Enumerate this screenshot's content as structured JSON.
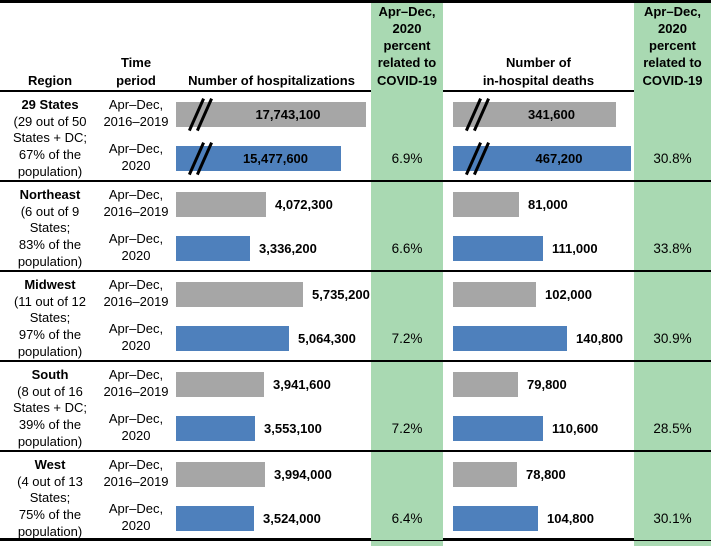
{
  "colors": {
    "bar_2016_2019_gray": "#a6a6a6",
    "bar_2020_blue": "#4e80bc",
    "covid_column_green": "#a9d9b2",
    "rule_black": "#000000"
  },
  "header": {
    "region": "Region",
    "time_period": "Time\nperiod",
    "hospitalizations": "Number of hospitalizations",
    "covid_pct_hosp": "Apr–Dec,\n2020\npercent\nrelated to\nCOVID-19",
    "deaths": "Number of\nin-hospital deaths",
    "covid_pct_deaths": "Apr–Dec,\n2020\npercent\nrelated to\nCOVID-19"
  },
  "rows": [
    {
      "region_name": "29 States",
      "region_sub": "(29 out of 50\nStates + DC;\n67% of the\npopulation)",
      "period_baseline": "Apr–Dec,\n2016–2019",
      "period_2020": "Apr–Dec,\n2020",
      "hosp_baseline_label": "17,743,100",
      "hosp_2020_label": "15,477,600",
      "hosp_covid_pct": "6.9%",
      "deaths_baseline_label": "341,600",
      "deaths_2020_label": "467,200",
      "deaths_covid_pct": "30.8%"
    },
    {
      "region_name": "Northeast",
      "region_sub": "(6 out of 9\nStates;\n83% of the\npopulation)",
      "period_baseline": "Apr–Dec,\n2016–2019",
      "period_2020": "Apr–Dec,\n2020",
      "hosp_baseline_label": "4,072,300",
      "hosp_2020_label": "3,336,200",
      "hosp_covid_pct": "6.6%",
      "deaths_baseline_label": "81,000",
      "deaths_2020_label": "111,000",
      "deaths_covid_pct": "33.8%"
    },
    {
      "region_name": "Midwest",
      "region_sub": "(11 out of 12\nStates;\n97% of the\npopulation)",
      "period_baseline": "Apr–Dec,\n2016–2019",
      "period_2020": "Apr–Dec,\n2020",
      "hosp_baseline_label": "5,735,200",
      "hosp_2020_label": "5,064,300",
      "hosp_covid_pct": "7.2%",
      "deaths_baseline_label": "102,000",
      "deaths_2020_label": "140,800",
      "deaths_covid_pct": "30.9%"
    },
    {
      "region_name": "South",
      "region_sub": "(8 out of 16\nStates + DC;\n39% of the\npopulation)",
      "period_baseline": "Apr–Dec,\n2016–2019",
      "period_2020": "Apr–Dec,\n2020",
      "hosp_baseline_label": "3,941,600",
      "hosp_2020_label": "3,553,100",
      "hosp_covid_pct": "7.2%",
      "deaths_baseline_label": "79,800",
      "deaths_2020_label": "110,600",
      "deaths_covid_pct": "28.5%"
    },
    {
      "region_name": "West",
      "region_sub": "(4 out of 13\nStates;\n75% of the\npopulation)",
      "period_baseline": "Apr–Dec,\n2016–2019",
      "period_2020": "Apr–Dec,\n2020",
      "hosp_baseline_label": "3,994,000",
      "hosp_2020_label": "3,524,000",
      "hosp_covid_pct": "6.4%",
      "deaths_baseline_label": "78,800",
      "deaths_2020_label": "104,800",
      "deaths_covid_pct": "30.1%"
    }
  ],
  "chart_data": [
    {
      "type": "bar",
      "title": "Number of hospitalizations",
      "orientation": "horizontal",
      "categories": [
        "29 States",
        "Northeast",
        "Midwest",
        "South",
        "West"
      ],
      "series": [
        {
          "name": "Apr–Dec, 2016–2019",
          "color": "#a6a6a6",
          "values": [
            17743100,
            4072300,
            5735200,
            3941600,
            3994000
          ]
        },
        {
          "name": "Apr–Dec, 2020",
          "color": "#4e80bc",
          "values": [
            15477600,
            3336200,
            5064300,
            3553100,
            3524000
          ]
        }
      ],
      "annotations_pct_related_covid_2020": [
        "6.9%",
        "6.6%",
        "7.2%",
        "7.2%",
        "6.4%"
      ],
      "axis_break_categories": [
        "29 States"
      ],
      "grid": false,
      "legend_position": "none"
    },
    {
      "type": "bar",
      "title": "Number of in-hospital deaths",
      "orientation": "horizontal",
      "categories": [
        "29 States",
        "Northeast",
        "Midwest",
        "South",
        "West"
      ],
      "series": [
        {
          "name": "Apr–Dec, 2016–2019",
          "color": "#a6a6a6",
          "values": [
            341600,
            81000,
            102000,
            79800,
            78800
          ]
        },
        {
          "name": "Apr–Dec, 2020",
          "color": "#4e80bc",
          "values": [
            467200,
            111000,
            140800,
            110600,
            104800
          ]
        }
      ],
      "annotations_pct_related_covid_2020": [
        "30.8%",
        "33.8%",
        "30.9%",
        "28.5%",
        "30.1%"
      ],
      "axis_break_categories": [
        "29 States"
      ],
      "grid": false,
      "legend_position": "none"
    }
  ]
}
